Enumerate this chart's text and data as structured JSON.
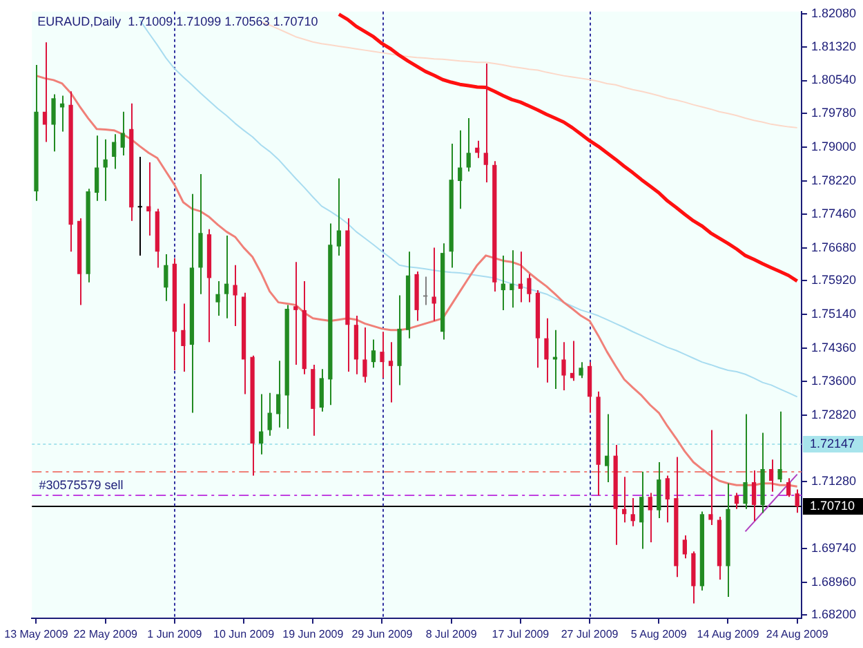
{
  "chart_data": {
    "type": "candlestick",
    "title": "EURAUD,Daily  1.71009 1.71099 1.70563 1.70710",
    "categories": [
      "13 May 2009",
      null,
      null,
      null,
      null,
      null,
      null,
      null,
      "22 May 2009",
      null,
      null,
      null,
      null,
      null,
      null,
      null,
      "1 Jun 2009",
      null,
      null,
      null,
      null,
      null,
      null,
      null,
      "10 Jun 2009",
      null,
      null,
      null,
      null,
      null,
      null,
      null,
      "19 Jun 2009",
      null,
      null,
      null,
      null,
      null,
      null,
      null,
      "29 Jun 2009",
      null,
      null,
      null,
      null,
      null,
      null,
      null,
      "8 Jul 2009",
      null,
      null,
      null,
      null,
      null,
      null,
      null,
      "17 Jul 2009",
      null,
      null,
      null,
      null,
      null,
      null,
      null,
      "27 Jul 2009",
      null,
      null,
      null,
      null,
      null,
      null,
      null,
      "5 Aug 2009",
      null,
      null,
      null,
      null,
      null,
      null,
      null,
      "14 Aug 2009",
      null,
      null,
      null,
      null,
      null,
      null,
      null,
      "24 Aug 2009"
    ],
    "ohlc": [
      [
        1.7798,
        1.809,
        1.7776,
        1.7982
      ],
      [
        1.7982,
        1.8142,
        1.7912,
        1.7952
      ],
      [
        1.7952,
        1.8022,
        1.789,
        1.8013
      ],
      [
        1.7992,
        1.8019,
        1.7936,
        1.8001
      ],
      [
        1.7998,
        1.8029,
        1.7659,
        1.7721
      ],
      [
        1.773,
        1.7736,
        1.7536,
        1.7607
      ],
      [
        1.7607,
        1.7804,
        1.7588,
        1.7798
      ],
      [
        1.7795,
        1.7927,
        1.7776,
        1.7853
      ],
      [
        1.7853,
        1.7918,
        1.7776,
        1.7872
      ],
      [
        1.7878,
        1.793,
        1.785,
        1.7912
      ],
      [
        1.7899,
        1.7982,
        1.7881,
        1.7933
      ],
      [
        1.7942,
        1.8001,
        1.773,
        1.7761
      ],
      [
        1.7761,
        1.7878,
        1.765,
        1.7761
      ],
      [
        1.7764,
        1.7865,
        1.7696,
        1.7752
      ],
      [
        1.7752,
        1.7758,
        1.7622,
        1.7659
      ],
      [
        1.7576,
        1.7653,
        1.7545,
        1.7628
      ],
      [
        1.7631,
        1.7644,
        1.7385,
        1.7474
      ],
      [
        1.7478,
        1.7539,
        1.7382,
        1.7441
      ],
      [
        1.7444,
        1.7792,
        1.7287,
        1.7622
      ],
      [
        1.7622,
        1.7838,
        1.7561,
        1.7702
      ],
      [
        1.7699,
        1.7711,
        1.745,
        1.7598
      ],
      [
        1.7542,
        1.7591,
        1.7511,
        1.7561
      ],
      [
        1.7561,
        1.7696,
        1.7505,
        1.7585
      ],
      [
        1.7582,
        1.7628,
        1.7487,
        1.7558
      ],
      [
        1.7555,
        1.7564,
        1.733,
        1.741
      ],
      [
        1.7416,
        1.7419,
        1.7142,
        1.7216
      ],
      [
        1.7216,
        1.733,
        1.7191,
        1.7244
      ],
      [
        1.7247,
        1.7333,
        1.7234,
        1.7287
      ],
      [
        1.7284,
        1.7407,
        1.7253,
        1.733
      ],
      [
        1.7327,
        1.7536,
        1.725,
        1.7527
      ],
      [
        1.7533,
        1.7635,
        1.7398,
        1.7524
      ],
      [
        1.7524,
        1.7591,
        1.7376,
        1.7388
      ],
      [
        1.7388,
        1.7398,
        1.7234,
        1.7296
      ],
      [
        1.7299,
        1.7388,
        1.729,
        1.7367
      ],
      [
        1.7364,
        1.7724,
        1.7305,
        1.7675
      ],
      [
        1.7671,
        1.7828,
        1.765,
        1.7708
      ],
      [
        1.7708,
        1.7736,
        1.7382,
        1.749
      ],
      [
        1.749,
        1.7511,
        1.7376,
        1.741
      ],
      [
        1.741,
        1.7484,
        1.7357,
        1.737
      ],
      [
        1.7404,
        1.7456,
        1.7391,
        1.7431
      ],
      [
        1.7428,
        1.7474,
        1.7367,
        1.7404
      ],
      [
        1.7407,
        1.745,
        1.7311,
        1.7395
      ],
      [
        1.7395,
        1.7558,
        1.7351,
        1.7481
      ],
      [
        1.7478,
        1.7659,
        1.7459,
        1.7604
      ],
      [
        1.7607,
        1.7613,
        1.7499,
        1.7524
      ],
      [
        1.7555,
        1.7601,
        1.7536,
        1.7555
      ],
      [
        1.7555,
        1.7668,
        1.7499,
        1.7539
      ],
      [
        1.7474,
        1.7678,
        1.7456,
        1.7656
      ],
      [
        1.7659,
        1.7908,
        1.7622,
        1.7825
      ],
      [
        1.7822,
        1.7939,
        1.7758,
        1.7853
      ],
      [
        1.7853,
        1.7967,
        1.7844,
        1.7887
      ],
      [
        1.7899,
        1.7915,
        1.7875,
        1.7887
      ],
      [
        1.7887,
        1.8093,
        1.7819,
        1.7859
      ],
      [
        1.7859,
        1.7868,
        1.7567,
        1.7588
      ],
      [
        1.757,
        1.765,
        1.7524,
        1.7585
      ],
      [
        1.757,
        1.7662,
        1.753,
        1.7585
      ],
      [
        1.7585,
        1.7659,
        1.7542,
        1.7573
      ],
      [
        1.7598,
        1.7607,
        1.7542,
        1.7561
      ],
      [
        1.7564,
        1.757,
        1.7391,
        1.7459
      ],
      [
        1.7459,
        1.7505,
        1.7357,
        1.741
      ],
      [
        1.741,
        1.7478,
        1.7342,
        1.7416
      ],
      [
        1.741,
        1.745,
        1.7339,
        1.7373
      ],
      [
        1.7379,
        1.7453,
        1.7361,
        1.7367
      ],
      [
        1.7373,
        1.7404,
        1.7367,
        1.7391
      ],
      [
        1.7395,
        1.7404,
        1.7287,
        1.7324
      ],
      [
        1.7324,
        1.7336,
        1.7096,
        1.7167
      ],
      [
        1.7164,
        1.7284,
        1.7127,
        1.7188
      ],
      [
        1.7188,
        1.7213,
        1.6982,
        1.7065
      ],
      [
        1.7065,
        1.7139,
        1.7034,
        1.7053
      ],
      [
        1.7053,
        1.709,
        1.7025,
        1.7037
      ],
      [
        1.7034,
        1.7151,
        1.6973,
        1.7093
      ],
      [
        1.7093,
        1.7102,
        1.6988,
        1.7062
      ],
      [
        1.7062,
        1.7173,
        1.7044,
        1.7133
      ],
      [
        1.7136,
        1.7142,
        1.7034,
        1.7087
      ],
      [
        1.709,
        1.7185,
        1.6908,
        1.6933
      ],
      [
        1.6994,
        1.7004,
        1.6951,
        1.696
      ],
      [
        1.6963,
        1.6967,
        1.6847,
        1.6887
      ],
      [
        1.6887,
        1.7059,
        1.6877,
        1.7053
      ],
      [
        1.7053,
        1.7247,
        1.7028,
        1.704
      ],
      [
        1.704,
        1.7047,
        1.6902,
        1.6933
      ],
      [
        1.6933,
        1.7124,
        1.6862,
        1.7065
      ],
      [
        1.7096,
        1.7102,
        1.7065,
        1.7077
      ],
      [
        1.7077,
        1.7284,
        1.7065,
        1.7127
      ],
      [
        1.7127,
        1.7154,
        1.7037,
        1.7074
      ],
      [
        1.7074,
        1.7241,
        1.7056,
        1.7157
      ],
      [
        1.7157,
        1.7179,
        1.7105,
        1.713
      ],
      [
        1.7133,
        1.729,
        1.7127,
        1.7157
      ],
      [
        1.7127,
        1.7136,
        1.7093,
        1.7096
      ],
      [
        1.71009,
        1.71099,
        1.70563,
        1.7071
      ]
    ],
    "colors": [
      "#228b22",
      "#dc143c",
      "#228b22",
      "#228b22",
      "#dc143c",
      "#dc143c",
      "#228b22",
      "#228b22",
      "#228b22",
      "#228b22",
      "#228b22",
      "#dc143c",
      "#000000",
      "#dc143c",
      "#dc143c",
      "#228b22",
      "#dc143c",
      "#dc143c",
      "#228b22",
      "#228b22",
      "#dc143c",
      "#228b22",
      "#228b22",
      "#dc143c",
      "#dc143c",
      "#dc143c",
      "#228b22",
      "#228b22",
      "#228b22",
      "#228b22",
      "#dc143c",
      "#dc143c",
      "#dc143c",
      "#228b22",
      "#228b22",
      "#228b22",
      "#dc143c",
      "#dc143c",
      "#dc143c",
      "#228b22",
      "#dc143c",
      "#dc143c",
      "#228b22",
      "#228b22",
      "#dc143c",
      "#808080",
      "#dc143c",
      "#228b22",
      "#228b22",
      "#228b22",
      "#228b22",
      "#dc143c",
      "#dc143c",
      "#dc143c",
      "#228b22",
      "#228b22",
      "#dc143c",
      "#dc143c",
      "#dc143c",
      "#dc143c",
      "#228b22",
      "#dc143c",
      "#dc143c",
      "#228b22",
      "#dc143c",
      "#dc143c",
      "#228b22",
      "#dc143c",
      "#dc143c",
      "#dc143c",
      "#228b22",
      "#dc143c",
      "#228b22",
      "#dc143c",
      "#dc143c",
      "#dc143c",
      "#dc143c",
      "#228b22",
      "#dc143c",
      "#dc143c",
      "#228b22",
      "#dc143c",
      "#228b22",
      "#dc143c",
      "#228b22",
      "#dc143c",
      "#228b22",
      "#dc143c",
      "#dc143c"
    ],
    "series": [
      {
        "type": "line",
        "color": "#f08078",
        "values": [
          1.8065,
          1.8059,
          1.8055,
          1.8047,
          1.8025,
          1.7995,
          1.7967,
          1.7942,
          1.7941,
          1.7939,
          1.793,
          1.7918,
          1.7902,
          1.7887,
          1.7875,
          1.7844,
          1.7813,
          1.7773,
          1.7758,
          1.7752,
          1.7739,
          1.7721,
          1.7705,
          1.7693,
          1.7668,
          1.7647,
          1.761,
          1.7567,
          1.7542,
          1.7539,
          1.7536,
          1.7518,
          1.7505,
          1.7502,
          1.7499,
          1.7502,
          1.7505,
          1.7502,
          1.7493,
          1.7487,
          1.7481,
          1.7478,
          1.7478,
          1.7481,
          1.7487,
          1.7493,
          1.7499,
          1.7505,
          1.7536,
          1.7567,
          1.7598,
          1.7628,
          1.765,
          1.7644,
          1.7638,
          1.7635,
          1.7628,
          1.761,
          1.7594,
          1.7579,
          1.7561,
          1.7542,
          1.7527,
          1.7511,
          1.7499,
          1.7465,
          1.7428,
          1.7395,
          1.7364,
          1.7345,
          1.7327,
          1.7305,
          1.7287,
          1.7256,
          1.7228,
          1.7198,
          1.7173,
          1.7157,
          1.7142,
          1.713,
          1.7124,
          1.712,
          1.712,
          1.712,
          1.7124,
          1.7124,
          1.712,
          1.712,
          1.7117
        ]
      },
      {
        "type": "line",
        "color": "#a8dcf0",
        "values": [
          null,
          null,
          null,
          null,
          null,
          null,
          null,
          null,
          null,
          null,
          null,
          null,
          1.8193,
          1.8164,
          1.8136,
          1.8106,
          1.8081,
          1.8062,
          1.8044,
          1.8025,
          1.8007,
          1.7989,
          1.7973,
          1.7955,
          1.7939,
          1.7924,
          1.7905,
          1.789,
          1.7872,
          1.785,
          1.7828,
          1.7807,
          1.7785,
          1.7764,
          1.7752,
          1.7739,
          1.7724,
          1.7705,
          1.769,
          1.7675,
          1.7659,
          1.7644,
          1.7628,
          1.7624,
          1.7622,
          1.7619,
          1.7616,
          1.7613,
          1.7611,
          1.761,
          1.7607,
          1.7604,
          1.7601,
          1.7598,
          1.7591,
          1.7585,
          1.7579,
          1.7573,
          1.7567,
          1.7561,
          1.7551,
          1.7542,
          1.7533,
          1.7524,
          1.7518,
          1.7511,
          1.7502,
          1.7493,
          1.7484,
          1.7474,
          1.7465,
          1.7456,
          1.7447,
          1.7438,
          1.7431,
          1.7422,
          1.7413,
          1.7404,
          1.7398,
          1.7391,
          1.7385,
          1.7382,
          1.7376,
          1.7367,
          1.7357,
          1.7351,
          1.7342,
          1.7333,
          1.7324
        ]
      },
      {
        "type": "line",
        "color": "#ff1010",
        "values": [
          null,
          null,
          null,
          null,
          null,
          null,
          null,
          null,
          null,
          null,
          null,
          null,
          null,
          null,
          null,
          null,
          null,
          null,
          null,
          null,
          null,
          null,
          null,
          null,
          null,
          null,
          null,
          null,
          null,
          null,
          null,
          null,
          null,
          null,
          null,
          1.8207,
          1.8195,
          1.8179,
          1.8167,
          1.8155,
          1.8139,
          1.8127,
          1.8112,
          1.8099,
          1.8087,
          1.8075,
          1.8066,
          1.8056,
          1.805,
          1.8045,
          1.8042,
          1.8039,
          1.8038,
          1.8029,
          1.8019,
          1.801,
          1.8004,
          1.7995,
          1.7986,
          1.7976,
          1.7967,
          1.7958,
          1.7945,
          1.793,
          1.7915,
          1.7902,
          1.7887,
          1.7872,
          1.7856,
          1.7841,
          1.7825,
          1.781,
          1.7795,
          1.7776,
          1.7761,
          1.7745,
          1.773,
          1.7718,
          1.7702,
          1.769,
          1.7678,
          1.7665,
          1.765,
          1.7641,
          1.7631,
          1.7622,
          1.7613,
          1.7604,
          1.7591
        ]
      },
      {
        "type": "line",
        "color": "#fcd8c8",
        "values": [
          null,
          null,
          null,
          null,
          null,
          null,
          null,
          null,
          null,
          null,
          null,
          null,
          null,
          null,
          null,
          null,
          null,
          null,
          null,
          null,
          null,
          null,
          null,
          null,
          null,
          null,
          1.8189,
          1.8182,
          1.8173,
          1.8164,
          1.8155,
          1.8149,
          1.8143,
          1.8139,
          1.8136,
          1.8133,
          1.813,
          1.8127,
          1.8124,
          1.8121,
          1.8118,
          1.8115,
          1.8112,
          1.8109,
          1.8107,
          1.8106,
          1.8104,
          1.8103,
          1.8101,
          1.8099,
          1.8098,
          1.8096,
          1.8096,
          1.8093,
          1.809,
          1.8086,
          1.8083,
          1.808,
          1.8078,
          1.8073,
          1.8069,
          1.8065,
          1.8062,
          1.8059,
          1.8056,
          1.8052,
          1.8047,
          1.8044,
          1.8038,
          1.8033,
          1.8029,
          1.8024,
          1.8019,
          1.8013,
          1.8009,
          1.8004,
          1.7998,
          1.7993,
          1.7988,
          1.7982,
          1.7978,
          1.7973,
          1.7967,
          1.7962,
          1.7958,
          1.7953,
          1.795,
          1.7947,
          1.7945
        ]
      },
      {
        "type": "line",
        "color": "#b040c0",
        "values": [
          null,
          null,
          null,
          null,
          null,
          null,
          null,
          null,
          null,
          null,
          null,
          null,
          null,
          null,
          null,
          null,
          null,
          null,
          null,
          null,
          null,
          null,
          null,
          null,
          null,
          null,
          null,
          null,
          null,
          null,
          null,
          null,
          null,
          null,
          null,
          null,
          null,
          null,
          null,
          null,
          null,
          null,
          null,
          null,
          null,
          null,
          null,
          null,
          null,
          null,
          null,
          null,
          null,
          null,
          null,
          null,
          null,
          null,
          null,
          null,
          null,
          null,
          null,
          null,
          null,
          null,
          null,
          null,
          null,
          null,
          null,
          null,
          null,
          null,
          null,
          null,
          null,
          null,
          null,
          null,
          null,
          null,
          1.7013,
          1.7035,
          1.7057,
          1.7079,
          1.7101,
          1.7123,
          1.7145
        ]
      }
    ],
    "ylim": [
      1.6813,
      1.8213
    ],
    "yticks": [
      {
        "value": 1.8208,
        "label": "1.82080"
      },
      {
        "value": 1.8132,
        "label": "1.81320"
      },
      {
        "value": 1.8054,
        "label": "1.80540"
      },
      {
        "value": 1.7978,
        "label": "1.79780"
      },
      {
        "value": 1.79,
        "label": "1.79000"
      },
      {
        "value": 1.7822,
        "label": "1.78220"
      },
      {
        "value": 1.7746,
        "label": "1.77460"
      },
      {
        "value": 1.7668,
        "label": "1.76680"
      },
      {
        "value": 1.7592,
        "label": "1.75920"
      },
      {
        "value": 1.7514,
        "label": "1.75140"
      },
      {
        "value": 1.7436,
        "label": "1.74360"
      },
      {
        "value": 1.736,
        "label": "1.73600"
      },
      {
        "value": 1.7282,
        "label": "1.72820"
      },
      {
        "value": 1.7128,
        "label": "1.71280"
      },
      {
        "value": 1.6974,
        "label": "1.69740"
      },
      {
        "value": 1.6896,
        "label": "1.68960"
      },
      {
        "value": 1.682,
        "label": "1.68200"
      }
    ],
    "ref_lines": [
      {
        "axis": "y",
        "value": 1.72147,
        "label": "1.72147",
        "color": "#a8e4ec",
        "line_style": "dotted"
      },
      {
        "axis": "y",
        "value": 1.7151,
        "color": "#f08078",
        "line_style": "dashed"
      },
      {
        "axis": "y",
        "value": 1.7098,
        "color": "#c040e0",
        "line_style": "dashed"
      },
      {
        "axis": "y",
        "value": 1.7071,
        "label": "1.70710",
        "color": "#000000",
        "line_style": "solid"
      },
      {
        "axis": "x",
        "value": "1 Jun 2009",
        "color": "#3030a0",
        "line_style": "dotted"
      },
      {
        "axis": "x",
        "value": "29 Jun 2009",
        "color": "#3030a0",
        "line_style": "dotted"
      },
      {
        "axis": "x",
        "value": "27 Jul 2009",
        "color": "#3030a0",
        "line_style": "dotted"
      }
    ],
    "annotations": [
      {
        "text": "#30575579 sell",
        "x": "13 May 2009",
        "y": 1.7098
      }
    ],
    "legend": false
  }
}
